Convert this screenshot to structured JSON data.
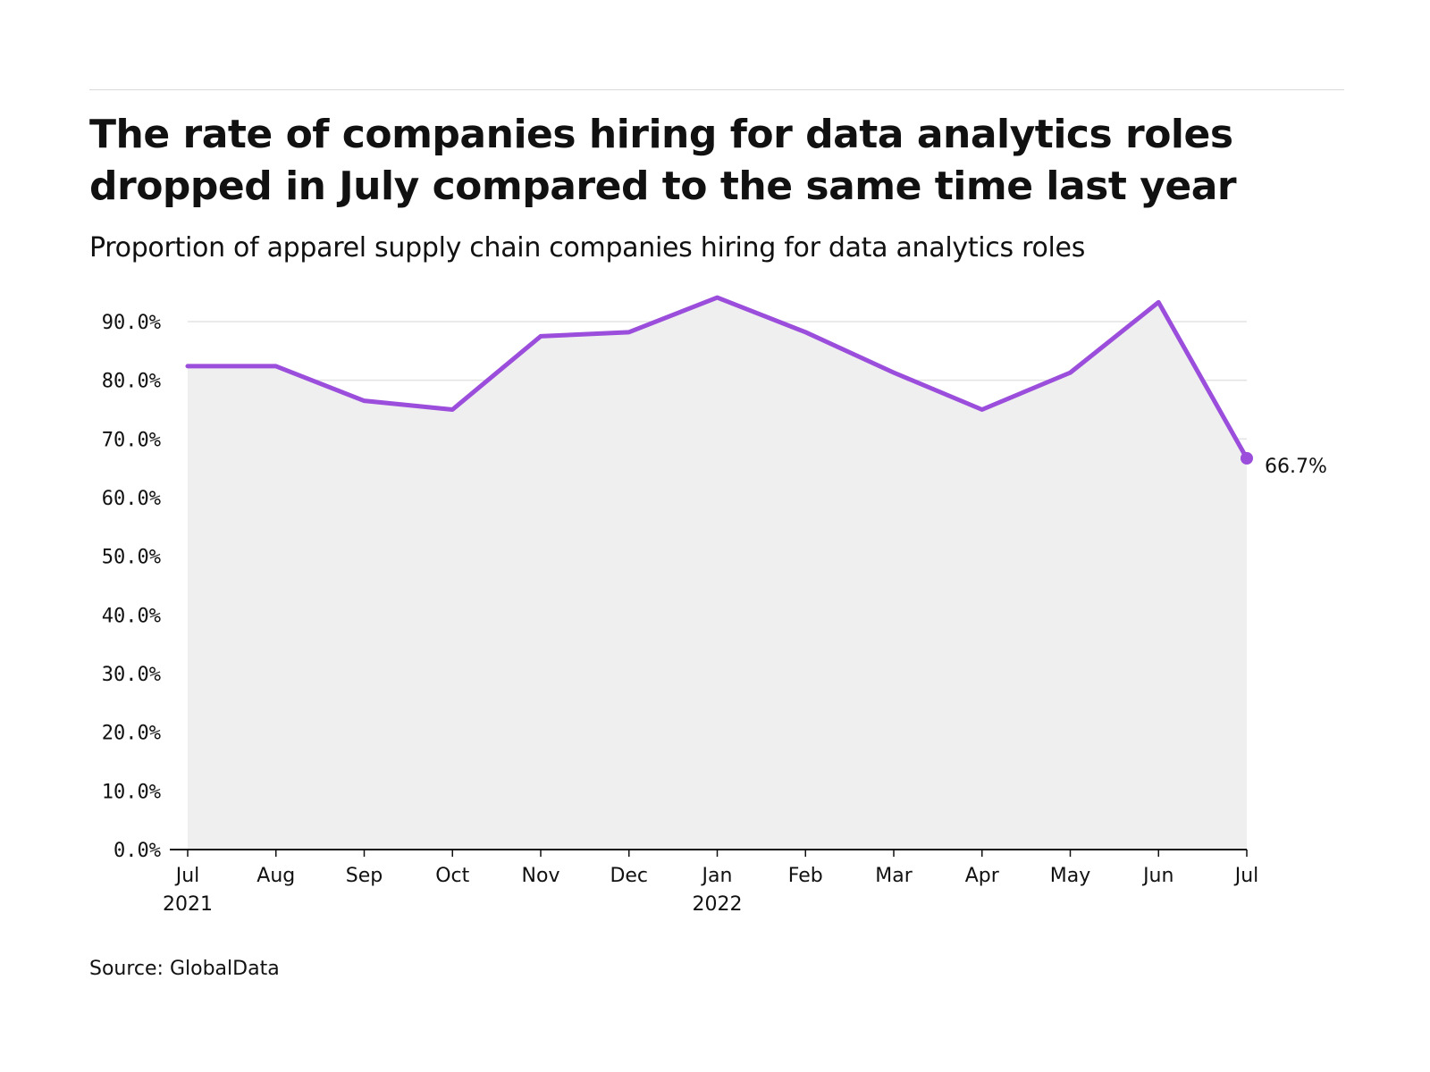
{
  "header": {
    "title": "The rate of companies hiring for data analytics roles dropped in July compared to the same time last year",
    "subtitle": "Proportion of apparel supply chain companies hiring for data analytics roles"
  },
  "footer": {
    "source": "Source: GlobalData"
  },
  "colors": {
    "line": "#9b4ddb",
    "area": "#efefef",
    "grid": "#e3e3e3",
    "axis": "#111111"
  },
  "chart_data": {
    "type": "area",
    "title": "The rate of companies hiring for data analytics roles dropped in July compared to the same time last year",
    "subtitle": "Proportion of apparel supply chain companies hiring for data analytics roles",
    "xlabel": "",
    "ylabel": "",
    "categories": [
      "Jul",
      "Aug",
      "Sep",
      "Oct",
      "Nov",
      "Dec",
      "Jan",
      "Feb",
      "Mar",
      "Apr",
      "May",
      "Jun",
      "Jul"
    ],
    "year_labels": [
      "2021",
      "",
      "",
      "",
      "",
      "",
      "2022",
      "",
      "",
      "",
      "",
      "",
      ""
    ],
    "series": [
      {
        "values": [
          82.4,
          82.4,
          76.5,
          75.0,
          87.5,
          88.2,
          94.1,
          88.2,
          81.3,
          75.0,
          81.3,
          93.3,
          66.7
        ]
      }
    ],
    "ylim": [
      0,
      90
    ],
    "yticks": [
      0,
      10,
      20,
      30,
      40,
      50,
      60,
      70,
      80,
      90
    ],
    "ytick_labels": [
      "0.0%",
      "10.0%",
      "20.0%",
      "30.0%",
      "40.0%",
      "50.0%",
      "60.0%",
      "70.0%",
      "80.0%",
      "90.0%"
    ],
    "end_label": "66.7%",
    "grid": true,
    "legend": "none"
  }
}
